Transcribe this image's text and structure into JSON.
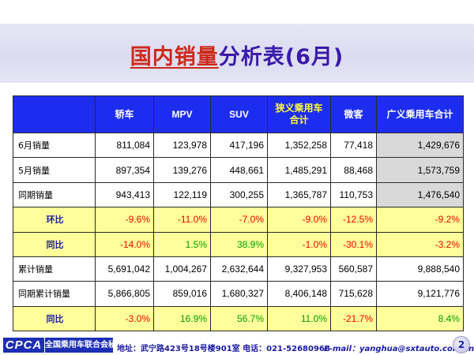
{
  "title": {
    "part_red": "国内销量",
    "part_blue": "分析表(6月)"
  },
  "table": {
    "headers": [
      "轿车",
      "MPV",
      "SUV",
      "狭义乘用车\n合计",
      "微客",
      "广义乘用车合计"
    ],
    "rows": [
      {
        "label": "6月销量",
        "values": [
          "811,084",
          "123,978",
          "417,196",
          "1,352,258",
          "77,418",
          "1,429,676"
        ]
      },
      {
        "label": "5月销量",
        "values": [
          "897,354",
          "139,276",
          "448,661",
          "1,485,291",
          "88,468",
          "1,573,759"
        ]
      },
      {
        "label": "同期销量",
        "values": [
          "943,413",
          "122,119",
          "300,255",
          "1,365,787",
          "110,753",
          "1,476,540"
        ]
      },
      {
        "label": "环比",
        "values": [
          "-9.6%",
          "-11.0%",
          "-7.0%",
          "-9.0%",
          "-12.5%",
          "-9.2%"
        ]
      },
      {
        "label": "同比",
        "values": [
          "-14.0%",
          "1.5%",
          "38.9%",
          "-1.0%",
          "-30.1%",
          "-3.2%"
        ]
      },
      {
        "label": "累计销量",
        "values": [
          "5,691,042",
          "1,004,267",
          "2,632,644",
          "9,327,953",
          "560,587",
          "9,888,540"
        ]
      },
      {
        "label": "同期累计销量",
        "values": [
          "5,866,805",
          "859,016",
          "1,680,327",
          "8,406,148",
          "715,628",
          "9,121,776"
        ]
      },
      {
        "label": "同比",
        "values": [
          "-3.0%",
          "16.9%",
          "56.7%",
          "11.0%",
          "-21.7%",
          "8.4%"
        ]
      }
    ]
  },
  "footer": {
    "logo": "CPCA",
    "org": "全国乘用车联合会秘书处",
    "address": "地址：武宁路423号18号楼901室 电话：021-52680968",
    "email": "E-mail：yanghua@sxtauto.com.cn",
    "page": "2"
  },
  "colors": {
    "header_bg": "#1d2df0",
    "ratio_bg": "#ffff99",
    "negative": "#ff0000",
    "positive": "#00a000",
    "gray_col": "#d9d9d9"
  }
}
